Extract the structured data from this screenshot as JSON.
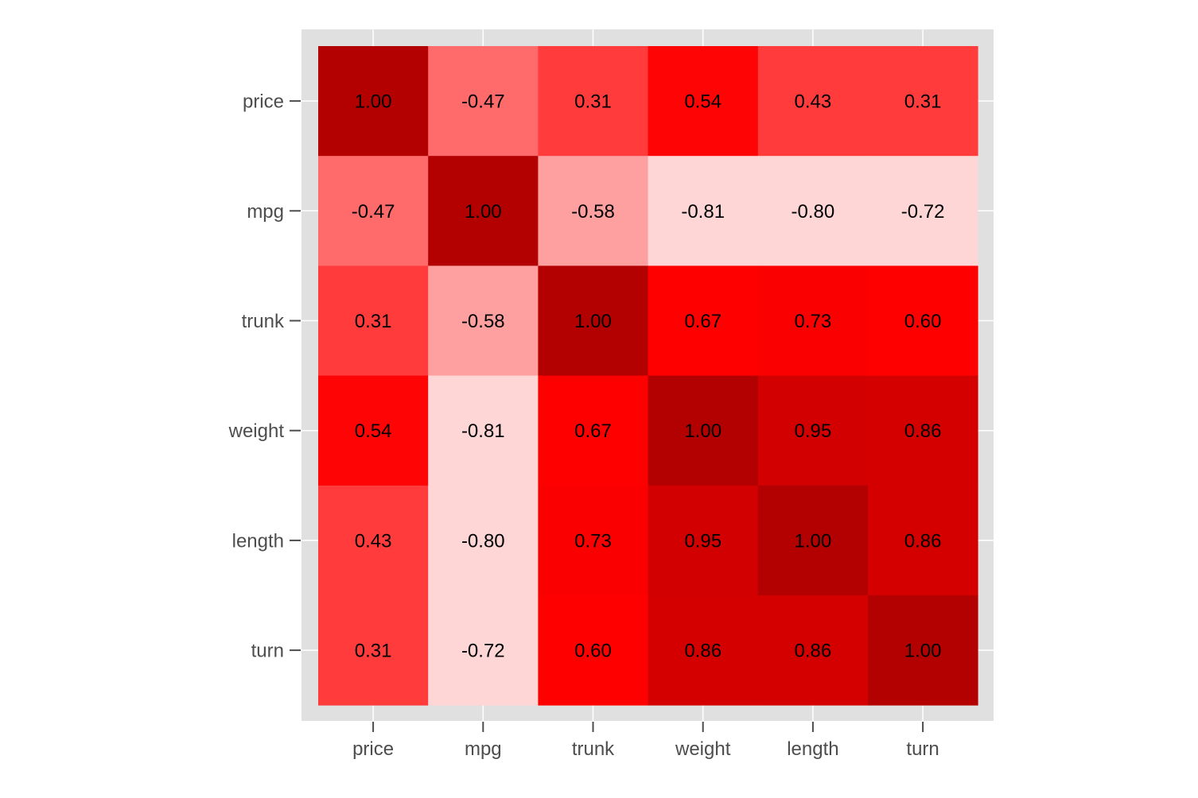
{
  "chart_data": {
    "type": "heatmap",
    "title": "",
    "xlabel": "",
    "ylabel": "",
    "x_categories": [
      "price",
      "mpg",
      "trunk",
      "weight",
      "length",
      "turn"
    ],
    "y_categories": [
      "price",
      "mpg",
      "trunk",
      "weight",
      "length",
      "turn"
    ],
    "values": [
      [
        1.0,
        -0.47,
        0.31,
        0.54,
        0.43,
        0.31
      ],
      [
        -0.47,
        1.0,
        -0.58,
        -0.81,
        -0.8,
        -0.72
      ],
      [
        0.31,
        -0.58,
        1.0,
        0.67,
        0.73,
        0.6
      ],
      [
        0.54,
        -0.81,
        0.67,
        1.0,
        0.95,
        0.86
      ],
      [
        0.43,
        -0.8,
        0.73,
        0.95,
        1.0,
        0.86
      ],
      [
        0.31,
        -0.72,
        0.6,
        0.86,
        0.86,
        1.0
      ]
    ],
    "value_labels": [
      [
        "1.00",
        "-0.47",
        "0.31",
        "0.54",
        "0.43",
        "0.31"
      ],
      [
        "-0.47",
        "1.00",
        "-0.58",
        "-0.81",
        "-0.80",
        "-0.72"
      ],
      [
        "0.31",
        "-0.58",
        "1.00",
        "0.67",
        "0.73",
        "0.60"
      ],
      [
        "0.54",
        "-0.81",
        "0.67",
        "1.00",
        "0.95",
        "0.86"
      ],
      [
        "0.43",
        "-0.80",
        "0.73",
        "0.95",
        "1.00",
        "0.86"
      ],
      [
        "0.31",
        "-0.72",
        "0.60",
        "0.86",
        "0.86",
        "1.00"
      ]
    ],
    "color_scale": {
      "stops": [
        {
          "value": -0.81,
          "color": "#ffd6d6"
        },
        {
          "value": -0.58,
          "color": "#ffa0a0"
        },
        {
          "value": -0.47,
          "color": "#ff6b6b"
        },
        {
          "value": 0.31,
          "color": "#ff3b3b"
        },
        {
          "value": 0.43,
          "color": "#ff3b3b"
        },
        {
          "value": 0.54,
          "color": "#ff0404"
        },
        {
          "value": 0.6,
          "color": "#ff0000"
        },
        {
          "value": 0.67,
          "color": "#ff0000"
        },
        {
          "value": 0.73,
          "color": "#fb0000"
        },
        {
          "value": 0.86,
          "color": "#d40000"
        },
        {
          "value": 0.95,
          "color": "#d20000"
        },
        {
          "value": 1.0,
          "color": "#b30000"
        }
      ]
    },
    "panel_background": "#e0e0e0",
    "grid": true,
    "legend": "none"
  }
}
